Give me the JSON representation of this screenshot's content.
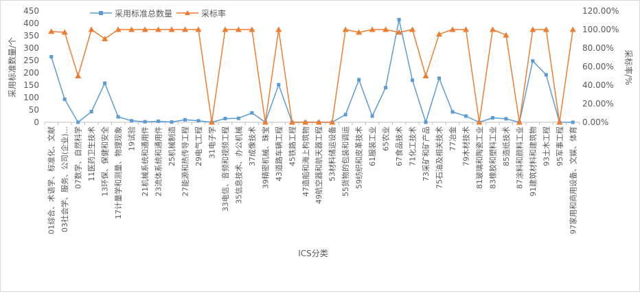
{
  "chart_data": {
    "type": "line",
    "xlabel": "ICS分类",
    "ylabel_left": "采用标准数量/个",
    "ylabel_right": "采标率/%",
    "y_left_range": [
      0,
      450
    ],
    "y_left_ticks": [
      0,
      50,
      100,
      150,
      200,
      250,
      300,
      350,
      400,
      450
    ],
    "y_right_range": [
      0,
      120
    ],
    "y_right_ticks": [
      "0.00%",
      "20.00%",
      "40.00%",
      "60.00%",
      "80.00%",
      "100.00%",
      "120.00%"
    ],
    "grid": false,
    "legend_position": "top-left",
    "categories": [
      "01综合、术语学、标准化、文献",
      "03社会学、服务、公司(企业)...",
      "07数学、自然科学",
      "11医药卫生技术",
      "13环保、保健和安全",
      "17计量学和测量、物理现象",
      "19试验",
      "21机械系统和通用件",
      "23流体系统和通用件",
      "25机械制造",
      "27能源和热传导工程",
      "29电气工程",
      "31电子学",
      "33电信、音频和视频工程",
      "35信息技术、办公机械",
      "37成像技术",
      "39精密机械、珠宝",
      "43道路车辆工程",
      "45铁路工程",
      "47造船和海上构筑物",
      "49航空器和航天器工程",
      "53材料储运设备",
      "55货物的包装和调运",
      "59纺织和皮革技术",
      "61服装工业",
      "65农业",
      "67食品技术",
      "71化工技术",
      "73采矿和矿产品",
      "75石油及相关技术",
      "77冶金",
      "79木材技术",
      "81玻璃和陶瓷工业",
      "83橡胶和塑料工业",
      "85造纸技术",
      "87涂料和颜料工业",
      "91建筑材料和建筑物",
      "93土木工程",
      "95军事工程",
      "97家用和商用设备、文娱、体育"
    ],
    "x_tick_labels": [
      "01综合、术语学、标准化、文献",
      "",
      "07数学、自然科学",
      "",
      "13环保、保健和安全",
      "",
      "19试验",
      "",
      "23流体系统和通用件",
      "",
      "27能源和热传导工程",
      "",
      "31电子学",
      "",
      "35信息技术、办公机械",
      "",
      "39精密机械、珠宝",
      "",
      "45铁路工程",
      "",
      "49航空器和航天器工程",
      "",
      "55货物的包装和调运",
      "",
      "61服装工业",
      "",
      "67食品技术",
      "",
      "73采矿和矿产品",
      "",
      "77冶金",
      "",
      "81玻璃和陶瓷工业",
      "",
      "85造纸技术",
      "",
      "91建筑材料和建筑物",
      "",
      "95军事工程",
      ""
    ],
    "x_tick_labels_offset": [
      "",
      "03社会学、服务、公司(企业)...",
      "",
      "11医药卫生技术",
      "",
      "17计量学和测量、物理现象",
      "",
      "21机械系统和通用件",
      "",
      "25机械制造",
      "",
      "29电气工程",
      "",
      "33电信、音频和视频工程",
      "",
      "37成像技术",
      "",
      "43道路车辆工程",
      "",
      "47造船和海上构筑物",
      "",
      "53材料储运设备",
      "",
      "59纺织和皮革技术",
      "",
      "65农业",
      "",
      "71化工技术",
      "",
      "75石油及相关技术",
      "",
      "79木材技术",
      "",
      "83橡胶和塑料工业",
      "",
      "87涂料和颜料工业",
      "",
      "93土木工程",
      "",
      "97家用和商用设备、文娱、体育"
    ],
    "series": [
      {
        "name": "采用标准总数量",
        "axis": "left",
        "color": "#5b9bd5",
        "marker": "square",
        "values": [
          265,
          93,
          0,
          43,
          158,
          22,
          6,
          2,
          4,
          1,
          10,
          6,
          0,
          15,
          16,
          38,
          0,
          152,
          0,
          0,
          0,
          0,
          31,
          172,
          25,
          140,
          415,
          170,
          0,
          178,
          42,
          25,
          0,
          18,
          14,
          0,
          248,
          192,
          0,
          0
        ]
      },
      {
        "name": "采标率",
        "axis": "right",
        "color": "#ed7d31",
        "marker": "triangle",
        "values": [
          98,
          97,
          50,
          100,
          90,
          100,
          100,
          100,
          100,
          100,
          100,
          100,
          0,
          100,
          100,
          100,
          0,
          100,
          0,
          0,
          0,
          0,
          100,
          97,
          100,
          100,
          97,
          100,
          50,
          95,
          100,
          100,
          0,
          100,
          94,
          0,
          100,
          100,
          0,
          100
        ]
      }
    ]
  }
}
